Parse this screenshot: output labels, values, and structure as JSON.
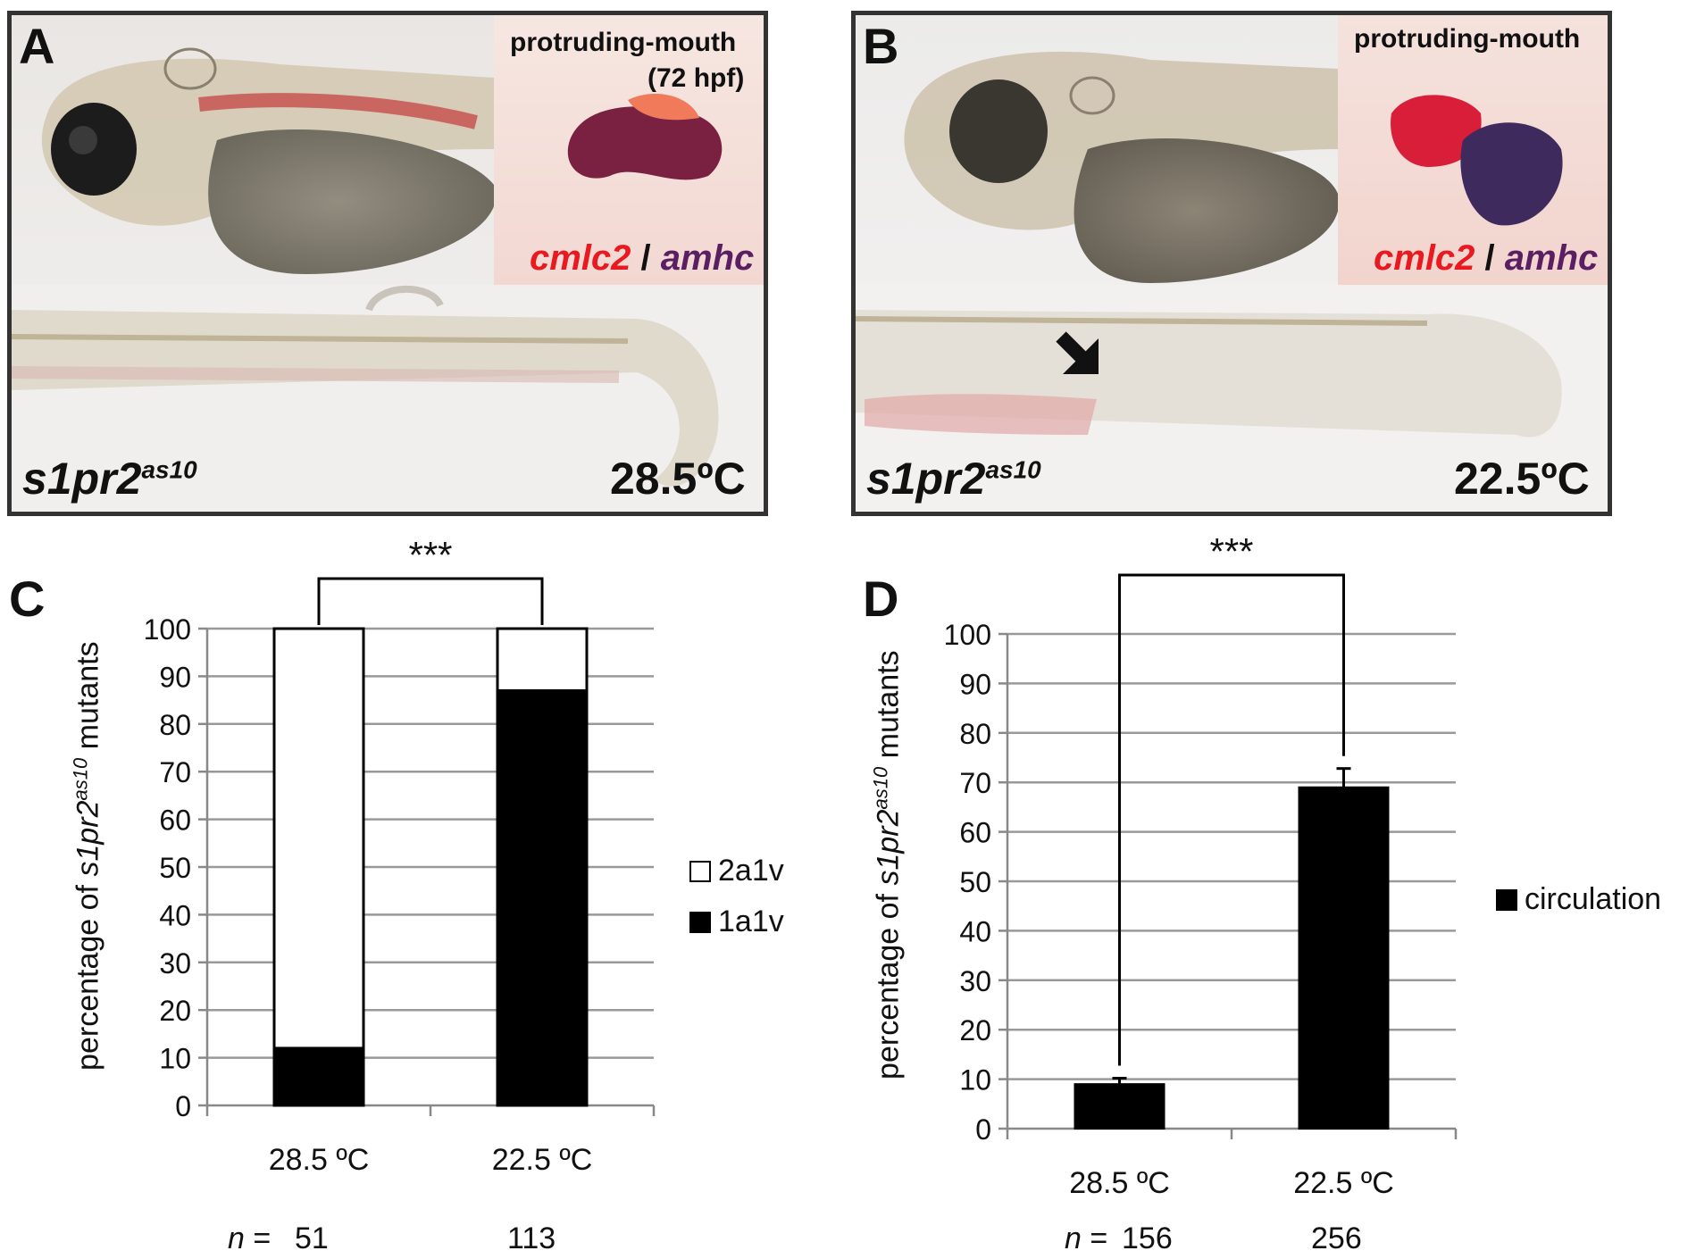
{
  "panel_a": {
    "letter": "A",
    "inset_title": "protruding-mouth",
    "inset_subtitle": "(72 hpf)",
    "probe_red": "cmlc2",
    "probe_sep": "/",
    "probe_purple": "amhc",
    "genotype_base": "s1pr2",
    "genotype_sup": "as10",
    "temperature": "28.5ºC"
  },
  "panel_b": {
    "letter": "B",
    "inset_title": "protruding-mouth",
    "probe_red": "cmlc2",
    "probe_sep": "/",
    "probe_purple": "amhc",
    "genotype_base": "s1pr2",
    "genotype_sup": "as10",
    "temperature": "22.5ºC"
  },
  "chart_data": [
    {
      "id": "C",
      "type": "bar",
      "stacked": true,
      "letter": "C",
      "ylabel_prefix": "percentage of ",
      "ylabel_gene": "s1pr2",
      "ylabel_sup": "as10",
      "ylabel_suffix": " mutants",
      "categories": [
        "28.5 ºC",
        "22.5 ºC"
      ],
      "series": [
        {
          "name": "1a1v",
          "values": [
            12,
            87
          ],
          "color": "#000000"
        },
        {
          "name": "2a1v",
          "values": [
            88,
            13
          ],
          "color": "#ffffff"
        }
      ],
      "legend_order": [
        "2a1v",
        "1a1v"
      ],
      "legend_position": "right",
      "ylim": [
        0,
        100
      ],
      "yticks": [
        0,
        10,
        20,
        30,
        40,
        50,
        60,
        70,
        80,
        90,
        100
      ],
      "grid": true,
      "significance": "***",
      "n_label": "n",
      "n_eq": "=",
      "n_values": [
        "51",
        "113"
      ]
    },
    {
      "id": "D",
      "type": "bar",
      "letter": "D",
      "ylabel_prefix": "percentage of ",
      "ylabel_gene": "s1pr2",
      "ylabel_sup": "as10",
      "ylabel_suffix": " mutants",
      "categories": [
        "28.5 ºC",
        "22.5 ºC"
      ],
      "series": [
        {
          "name": "circulation",
          "values": [
            9,
            69
          ],
          "errors": [
            1.2,
            3.8
          ],
          "color": "#000000"
        }
      ],
      "legend_position": "right",
      "ylim": [
        0,
        100
      ],
      "yticks": [
        0,
        10,
        20,
        30,
        40,
        50,
        60,
        70,
        80,
        90,
        100
      ],
      "grid": true,
      "significance": "***",
      "n_label": "n",
      "n_eq": "=",
      "n_values": [
        "156",
        "256"
      ]
    }
  ],
  "colors": {
    "frame": "#333333",
    "probe_red": "#e8191f",
    "probe_purple": "#5a1f63",
    "grid": "#999999"
  }
}
